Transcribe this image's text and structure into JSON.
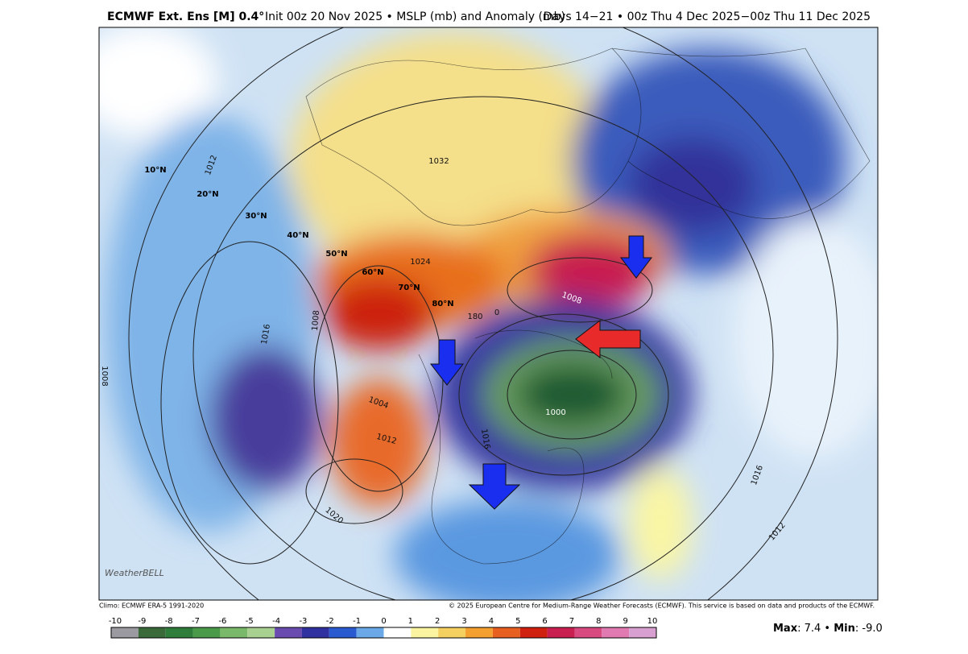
{
  "header": {
    "model": "ECMWF Ext.  Ens [M] 0.4°",
    "run": "Init 00z 20 Nov 2025 • MSLP (mb) and Anomaly (mb)",
    "valid": "Days 14−21 • 00z Thu 4 Dec 2025−00z Thu 11 Dec 2025"
  },
  "map": {
    "lat_labels": [
      "10°N",
      "20°N",
      "30°N",
      "40°N",
      "50°N",
      "60°N",
      "70°N",
      "80°N"
    ],
    "isobar_labels": [
      "1012",
      "1016",
      "1008",
      "1008",
      "1004",
      "1012",
      "1000",
      "1008",
      "1020",
      "1016",
      "1012",
      "180",
      "0",
      "1016",
      "1024",
      "1032"
    ],
    "logo": "WeatherBELL"
  },
  "footer": {
    "climo": "Climo: ECMWF ERA-5 1991-2020",
    "copyright": "© 2025 European Centre for Medium-Range Weather Forecasts (ECMWF). This service is based on data and products of the ECMWF.",
    "max_label": "Max",
    "max_value": ": 7.4 • ",
    "min_label": "Min",
    "min_value": ": -9.0"
  },
  "colorbar": {
    "ticks": [
      -10,
      -9,
      -8,
      -7,
      -6,
      -5,
      -4,
      -3,
      -2,
      -1,
      0,
      1,
      2,
      3,
      4,
      5,
      6,
      7,
      8,
      9,
      10
    ]
  }
}
